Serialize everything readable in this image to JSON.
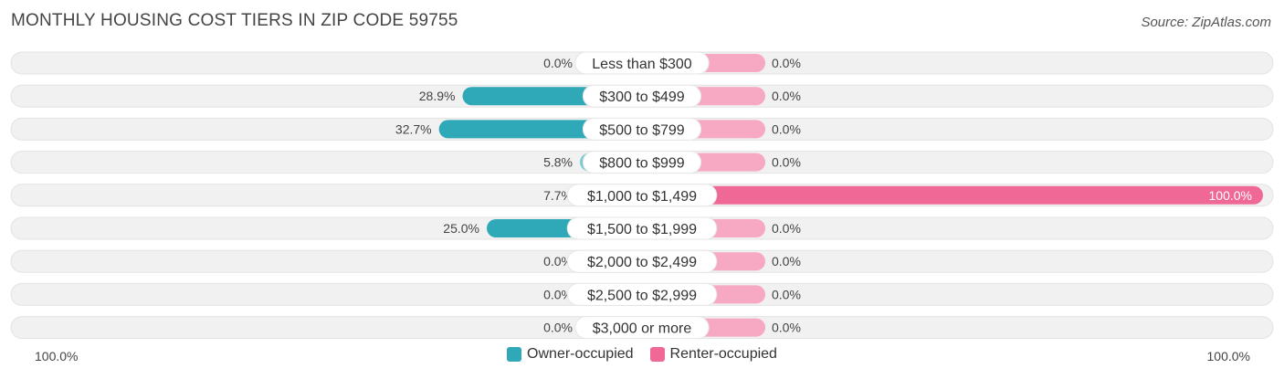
{
  "header": {
    "title": "MONTHLY HOUSING COST TIERS IN ZIP CODE 59755",
    "source": "Source: ZipAtlas.com"
  },
  "colors": {
    "owner_strong": "#2fa8b8",
    "owner_light": "#7cc9d3",
    "renter_strong": "#f06895",
    "renter_light": "#f7a8c2",
    "track": "#f1f1f1"
  },
  "chart_data": {
    "type": "bar",
    "orientation": "diverging-horizontal",
    "categories": [
      "Less than $300",
      "$300 to $499",
      "$500 to $799",
      "$800 to $999",
      "$1,000 to $1,499",
      "$1,500 to $1,999",
      "$2,000 to $2,499",
      "$2,500 to $2,999",
      "$3,000 or more"
    ],
    "series": [
      {
        "name": "Owner-occupied",
        "values": [
          0.0,
          28.9,
          32.7,
          5.8,
          7.7,
          25.0,
          0.0,
          0.0,
          0.0
        ],
        "labels": [
          "0.0%",
          "28.9%",
          "32.7%",
          "5.8%",
          "7.7%",
          "25.0%",
          "0.0%",
          "0.0%",
          "0.0%"
        ]
      },
      {
        "name": "Renter-occupied",
        "values": [
          0.0,
          0.0,
          0.0,
          0.0,
          100.0,
          0.0,
          0.0,
          0.0,
          0.0
        ],
        "labels": [
          "0.0%",
          "0.0%",
          "0.0%",
          "0.0%",
          "100.0%",
          "0.0%",
          "0.0%",
          "0.0%",
          "0.0%"
        ]
      }
    ],
    "xlim": [
      -100,
      100
    ],
    "axis_left_label": "100.0%",
    "axis_right_label": "100.0%",
    "legend_position": "bottom-center"
  }
}
